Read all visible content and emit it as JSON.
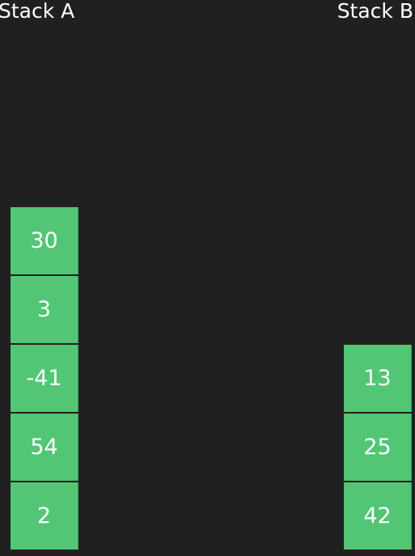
{
  "stacks": {
    "a": {
      "label": "Stack A",
      "items": [
        "30",
        "3",
        "-41",
        "54",
        "2"
      ]
    },
    "b": {
      "label": "Stack B",
      "items": [
        "13",
        "25",
        "42"
      ]
    }
  },
  "colors": {
    "background": "#202020",
    "block": "#52c675",
    "text": "#ffffff"
  }
}
